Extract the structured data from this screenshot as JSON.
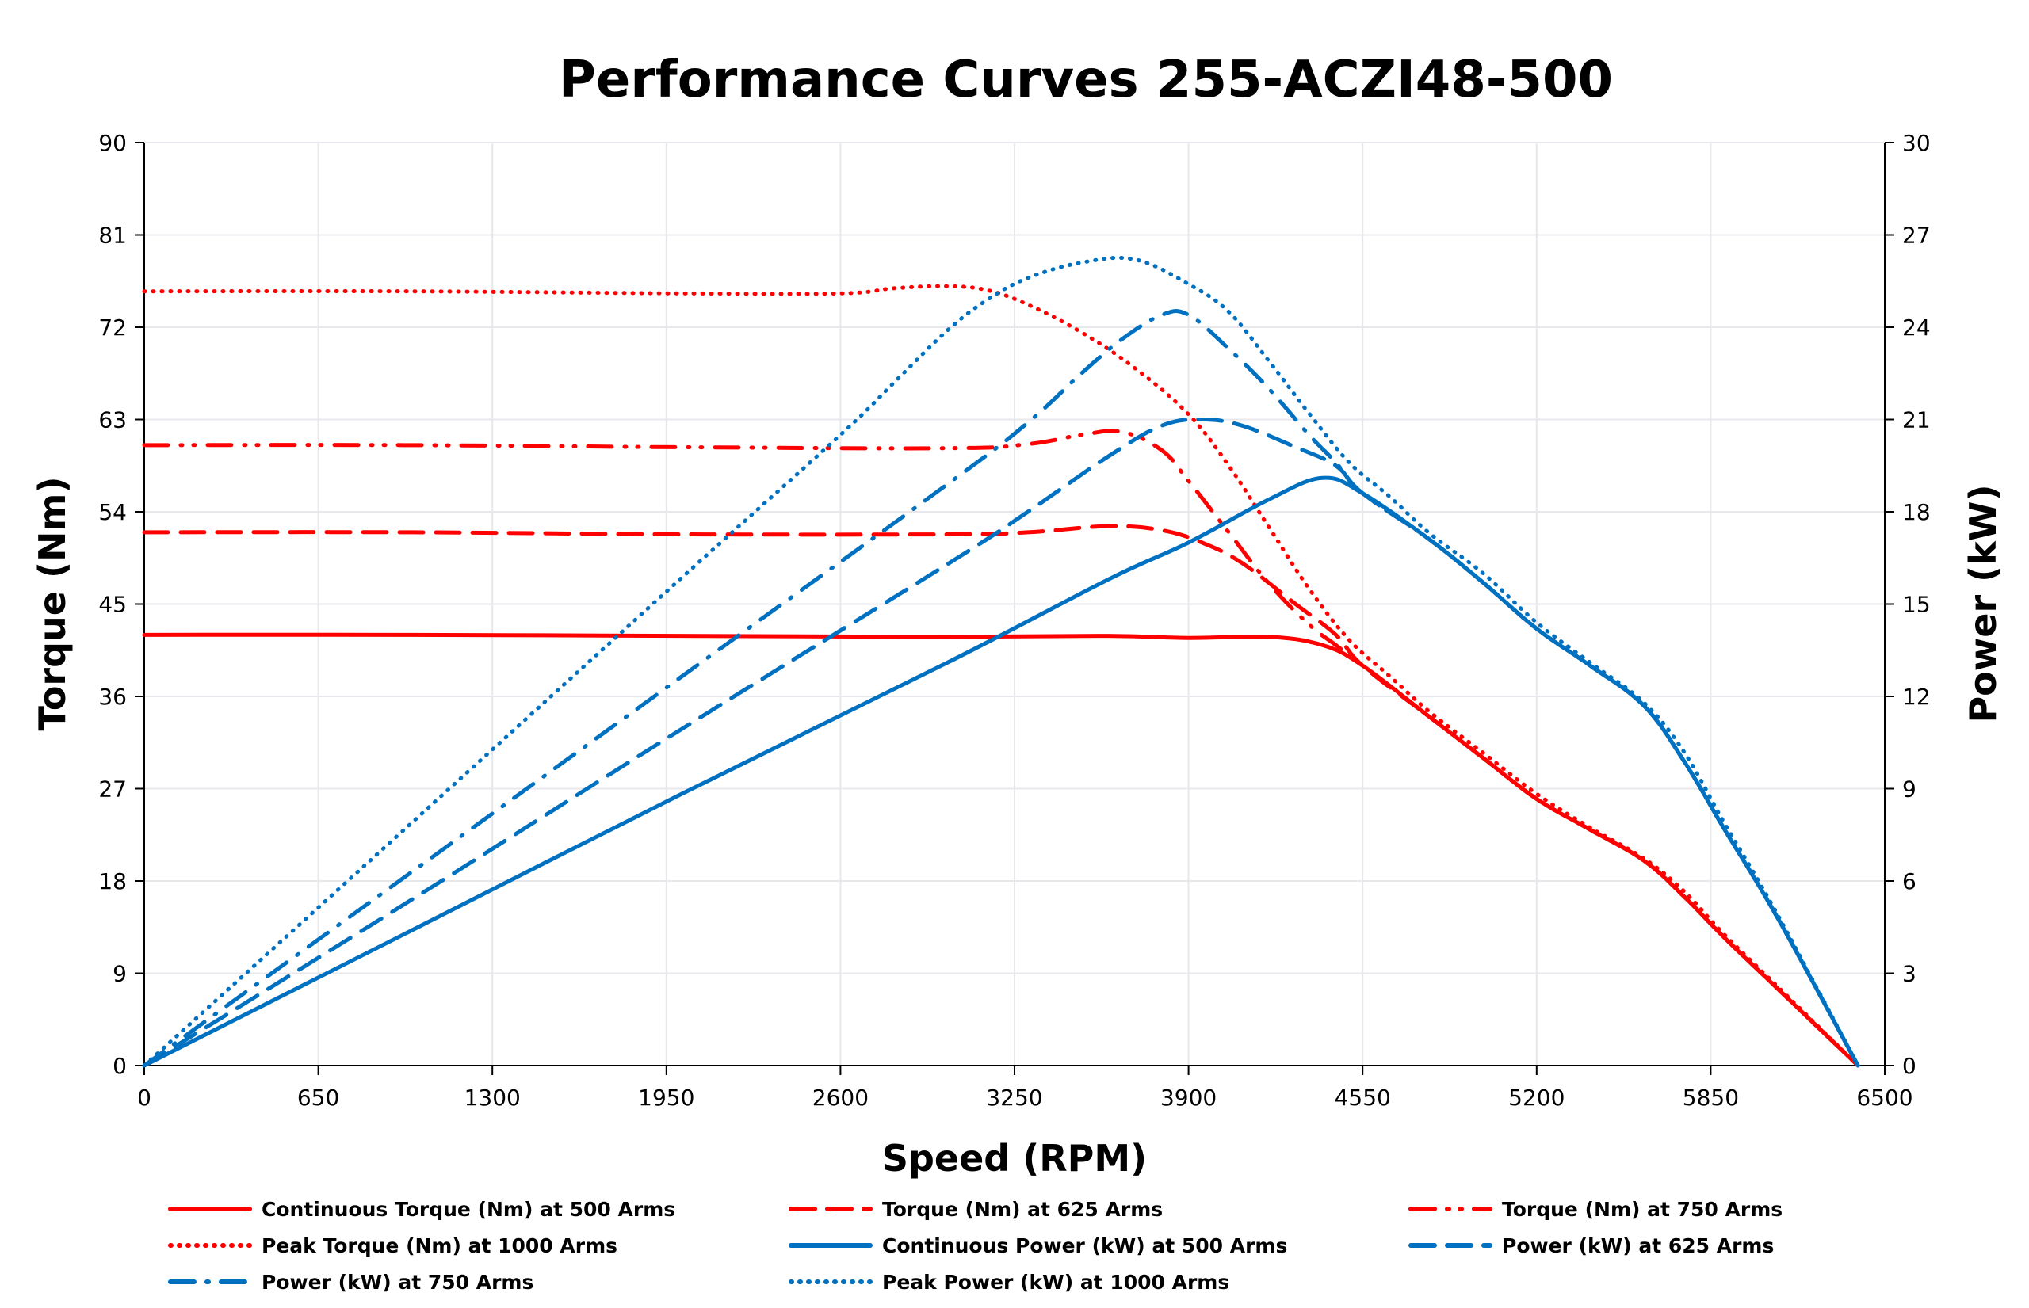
{
  "chart_data": {
    "type": "line",
    "title": "Performance Curves 255-ACZI48-500",
    "xlabel": "Speed (RPM)",
    "ylabel": "Torque (Nm)",
    "y2label": "Power (kW)",
    "xlim": [
      0,
      6500
    ],
    "ylim": [
      0,
      90
    ],
    "y2lim": [
      0,
      30
    ],
    "xticks": [
      0,
      650,
      1300,
      1950,
      2600,
      3250,
      3900,
      4550,
      5200,
      5850,
      6500
    ],
    "yticks": [
      0,
      9,
      18,
      27,
      36,
      45,
      54,
      63,
      72,
      81,
      90
    ],
    "y2ticks": [
      0,
      3,
      6,
      9,
      12,
      15,
      18,
      21,
      24,
      27,
      30
    ],
    "grid": true,
    "legend_position": "bottom",
    "series": [
      {
        "name": "Continuous Torque (Nm) at 500 Arms",
        "axis": "left",
        "color": "#FF0000",
        "style": "solid",
        "x": [
          0,
          1000,
          2000,
          3000,
          3600,
          3900,
          4200,
          4400,
          4550,
          4800,
          5000,
          5200,
          5400,
          5600,
          5750,
          5900,
          6100,
          6400
        ],
        "y": [
          42,
          42,
          41.9,
          41.8,
          41.9,
          41.7,
          41.8,
          41,
          39,
          34,
          30,
          26,
          23,
          20,
          16.5,
          12.5,
          7.5,
          0
        ]
      },
      {
        "name": "Torque (Nm) at 625 Arms",
        "axis": "left",
        "color": "#FF0000",
        "style": "dash",
        "x": [
          0,
          1000,
          2000,
          3000,
          3300,
          3600,
          3800,
          3950,
          4100,
          4300,
          4450,
          4550,
          4800,
          5000,
          5200,
          5400,
          5600,
          5750,
          5900,
          6100,
          6400
        ],
        "y": [
          52,
          52,
          51.8,
          51.8,
          52,
          52.6,
          52.2,
          51,
          49,
          45,
          42,
          39,
          34,
          30,
          26,
          23,
          20,
          16.5,
          12.5,
          7.5,
          0
        ]
      },
      {
        "name": "Torque (Nm) at 750 Arms",
        "axis": "left",
        "color": "#FF0000",
        "style": "dash-dot-dot",
        "x": [
          0,
          1000,
          2000,
          3000,
          3300,
          3500,
          3650,
          3800,
          3900,
          4050,
          4200,
          4350,
          4450,
          4550,
          4800,
          5000,
          5200,
          5400,
          5600,
          5750,
          5900,
          6100,
          6400
        ],
        "y": [
          60.5,
          60.5,
          60.3,
          60.2,
          60.6,
          61.5,
          61.8,
          60,
          57,
          52,
          47,
          43,
          41,
          39,
          34,
          30,
          26,
          23,
          20,
          16.5,
          12.5,
          7.5,
          0
        ]
      },
      {
        "name": "Peak Torque (Nm) at 1000  Arms",
        "axis": "left",
        "color": "#FF0000",
        "style": "dot",
        "x": [
          0,
          1000,
          2000,
          2600,
          2800,
          3000,
          3150,
          3300,
          3500,
          3700,
          3900,
          4050,
          4200,
          4350,
          4500,
          4650,
          4800,
          5000,
          5200,
          5400,
          5600,
          5750,
          5900,
          6100,
          6400
        ],
        "y": [
          75.5,
          75.5,
          75.3,
          75.3,
          75.8,
          76,
          75.6,
          74.2,
          71.5,
          68,
          63.5,
          58.5,
          52.5,
          46.5,
          41.5,
          38,
          34.5,
          30.5,
          26.5,
          23.2,
          20.2,
          17,
          12.8,
          7.7,
          0
        ]
      },
      {
        "name": "Continuous Power (kW) at 500 Arms",
        "axis": "right",
        "color": "#0070C0",
        "style": "solid",
        "x": [
          0,
          1000,
          2000,
          3000,
          3600,
          3900,
          4200,
          4400,
          4550,
          4800,
          5000,
          5200,
          5400,
          5600,
          5750,
          5900,
          6100,
          6400
        ],
        "y": [
          0,
          4.4,
          8.8,
          13.1,
          15.8,
          17.0,
          18.4,
          19.1,
          18.6,
          17.1,
          15.7,
          14.2,
          13.0,
          11.7,
          9.9,
          7.7,
          4.8,
          0
        ]
      },
      {
        "name": "Power (kW) at 625 Arms",
        "axis": "right",
        "color": "#0070C0",
        "style": "dash",
        "x": [
          0,
          1000,
          2000,
          3000,
          3300,
          3600,
          3800,
          3950,
          4100,
          4300,
          4450,
          4550,
          4800,
          5000,
          5200,
          5400,
          5600,
          5750,
          5900,
          6100,
          6400
        ],
        "y": [
          0,
          5.4,
          10.9,
          16.3,
          18.0,
          19.8,
          20.8,
          21.0,
          20.8,
          20.1,
          19.5,
          18.6,
          17.1,
          15.7,
          14.2,
          13.0,
          11.7,
          9.9,
          7.7,
          4.8,
          0
        ]
      },
      {
        "name": "Power (kW) at 750 Arms",
        "axis": "right",
        "color": "#0070C0",
        "style": "dash-dot",
        "x": [
          0,
          1000,
          2000,
          3000,
          3300,
          3500,
          3650,
          3800,
          3900,
          4050,
          4200,
          4350,
          4450,
          4550,
          4800,
          5000,
          5200,
          5400,
          5600,
          5750,
          5900,
          6100,
          6400
        ],
        "y": [
          0,
          6.3,
          12.6,
          18.9,
          20.9,
          22.5,
          23.6,
          24.4,
          24.4,
          23.3,
          22.0,
          20.5,
          19.6,
          18.6,
          17.1,
          15.7,
          14.2,
          13.0,
          11.7,
          9.9,
          7.7,
          4.8,
          0
        ]
      },
      {
        "name": "Peak Power (kW) at 1000 Arms",
        "axis": "right",
        "color": "#0070C0",
        "style": "dot",
        "x": [
          0,
          1000,
          2000,
          2600,
          2800,
          3000,
          3150,
          3300,
          3500,
          3700,
          3900,
          4050,
          4200,
          4350,
          4500,
          4650,
          4800,
          5000,
          5200,
          5400,
          5600,
          5750,
          5900,
          6100,
          6400
        ],
        "y": [
          0,
          7.9,
          15.8,
          20.5,
          22.2,
          23.9,
          24.9,
          25.6,
          26.1,
          26.2,
          25.4,
          24.5,
          22.9,
          21.2,
          19.6,
          18.5,
          17.3,
          16.0,
          14.4,
          13.1,
          11.8,
          10.2,
          7.9,
          4.9,
          0
        ]
      }
    ]
  }
}
